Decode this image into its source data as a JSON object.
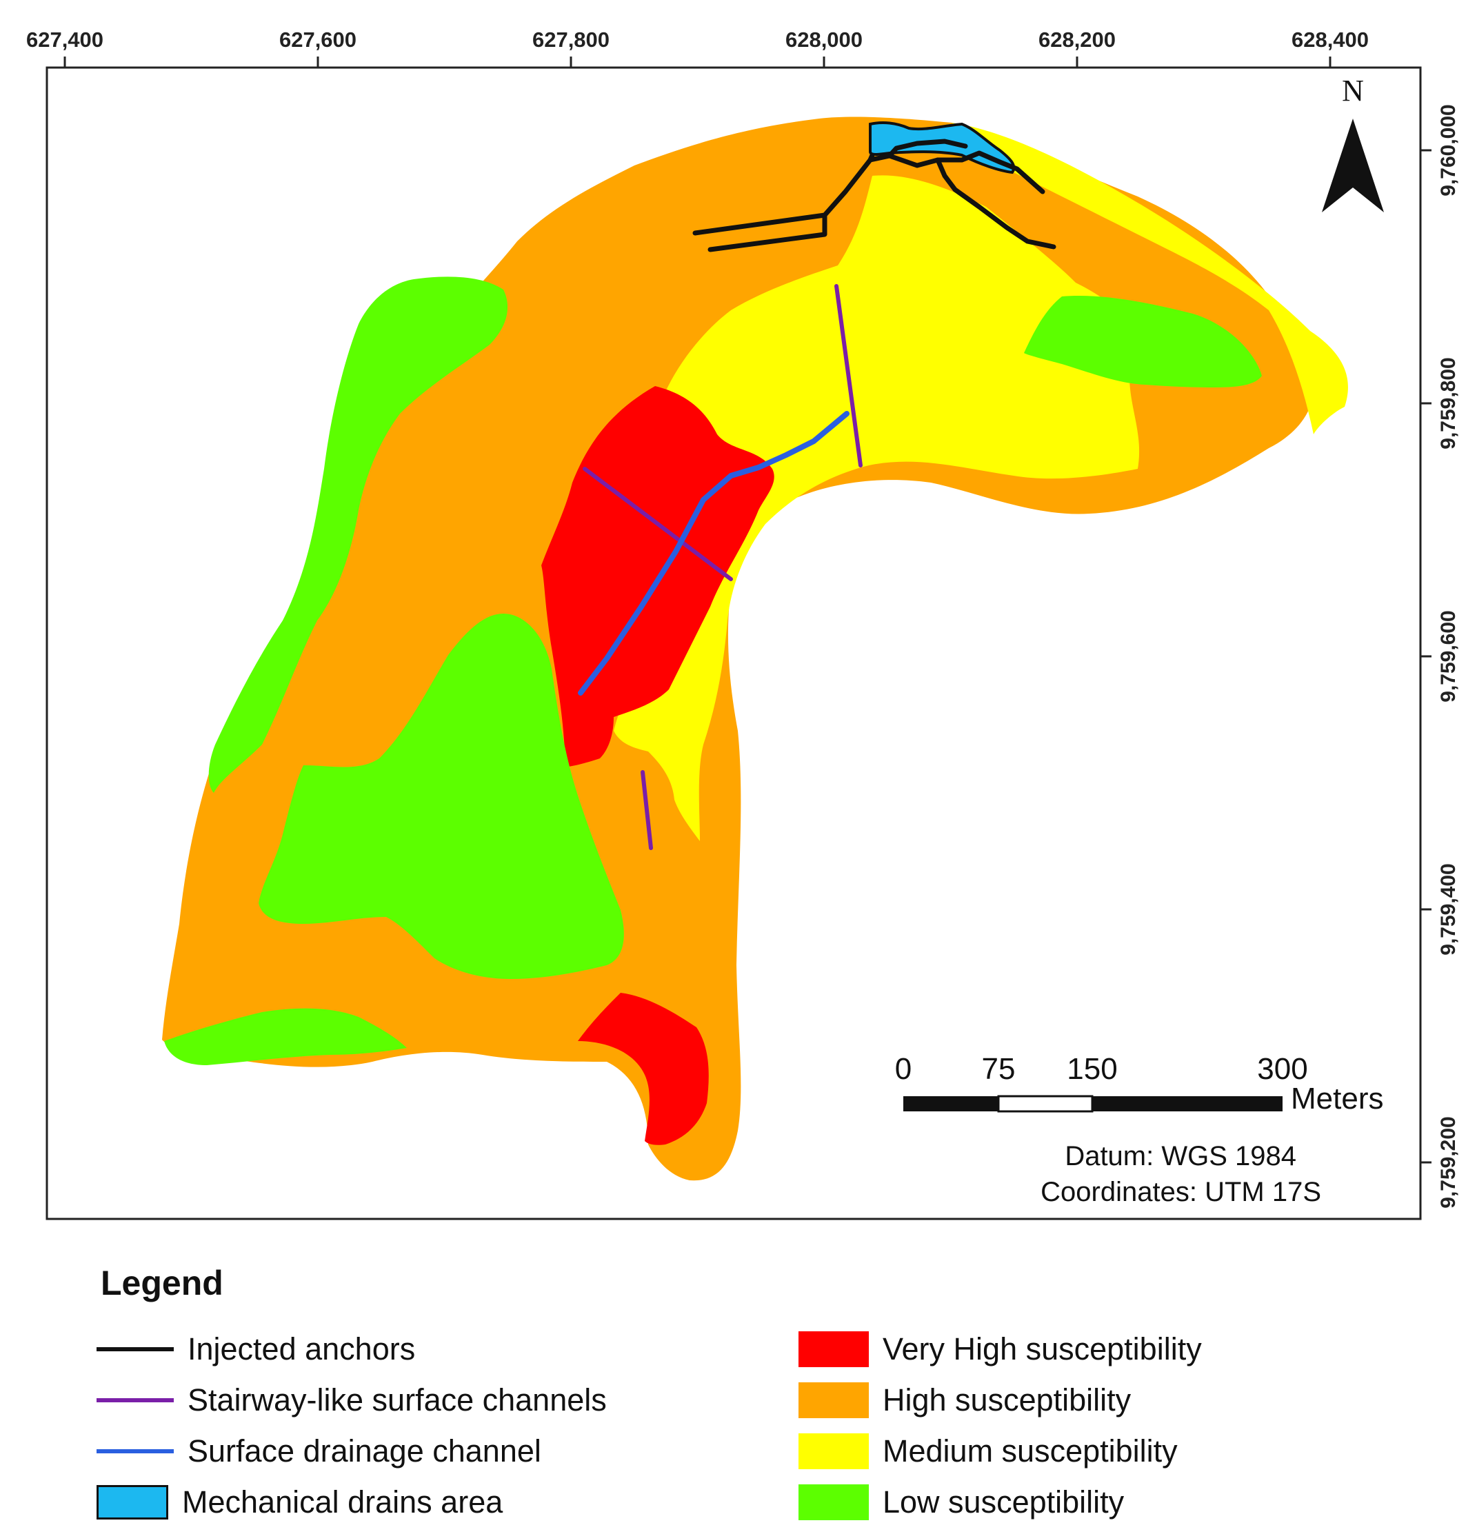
{
  "map": {
    "x_ticks": [
      "627,400",
      "627,600",
      "627,800",
      "628,000",
      "628,200",
      "628,400"
    ],
    "y_ticks": [
      "9,760,000",
      "9,759,800",
      "9,759,600",
      "9,759,400",
      "9,759,200"
    ],
    "north_label": "N",
    "scale_bar": {
      "labels": [
        "0",
        "75",
        "150",
        "300"
      ],
      "unit": "Meters"
    },
    "datum": "Datum: WGS 1984",
    "coordinates": "Coordinates: UTM 17S"
  },
  "legend": {
    "title": "Legend",
    "lines": [
      {
        "label": "Injected anchors",
        "color": "#111111",
        "icon": "line"
      },
      {
        "label": "Stairway-like surface channels",
        "color": "#7a1fa8",
        "icon": "line"
      },
      {
        "label": "Surface drainage channel",
        "color": "#2a5fe0",
        "icon": "line"
      },
      {
        "label": "Mechanical drains area",
        "color": "#1cb8f0",
        "icon": "box"
      }
    ],
    "classes": [
      {
        "label": "Very High susceptibility",
        "color": "#ff0000"
      },
      {
        "label": "High susceptibility",
        "color": "#ffa500"
      },
      {
        "label": "Medium susceptibility",
        "color": "#ffff00"
      },
      {
        "label": "Low susceptibility",
        "color": "#5cff00"
      }
    ]
  }
}
